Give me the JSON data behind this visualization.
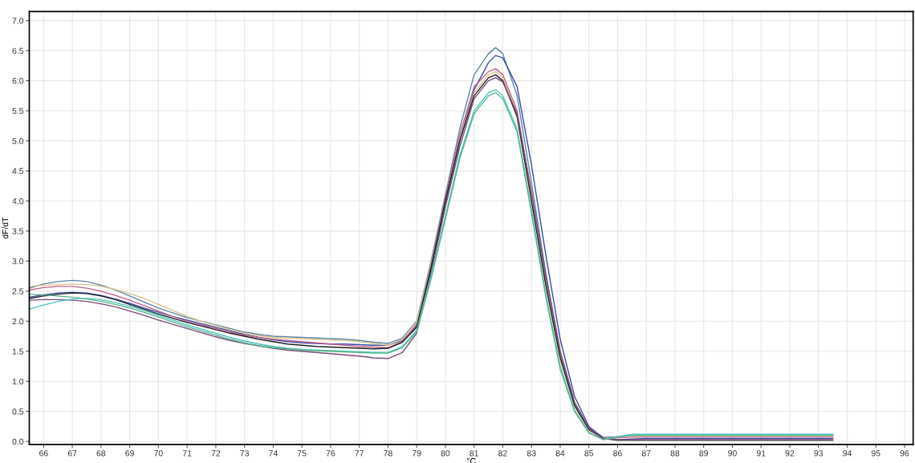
{
  "chart_data": {
    "type": "line",
    "xlabel": "°C",
    "ylabel": "dF/dT",
    "x": [
      65.5,
      66,
      66.5,
      67,
      67.5,
      68,
      68.5,
      69,
      69.5,
      70,
      70.5,
      71,
      71.5,
      72,
      72.5,
      73,
      73.5,
      74,
      74.5,
      75,
      75.5,
      76,
      76.5,
      77,
      77.5,
      78,
      78.5,
      79,
      79.5,
      80,
      80.5,
      81,
      81.5,
      81.75,
      82,
      82.5,
      83,
      83.5,
      84,
      84.5,
      85,
      85.5,
      86,
      86.5,
      87,
      88,
      89,
      90,
      91,
      92,
      93,
      93.5
    ],
    "series": [
      {
        "color": "#5a86a8",
        "values": [
          2.55,
          2.62,
          2.66,
          2.68,
          2.66,
          2.6,
          2.52,
          2.42,
          2.32,
          2.22,
          2.14,
          2.06,
          2.0,
          1.94,
          1.88,
          1.82,
          1.78,
          1.75,
          1.74,
          1.73,
          1.72,
          1.71,
          1.7,
          1.68,
          1.65,
          1.63,
          1.72,
          2.0,
          3.0,
          4.1,
          5.2,
          6.1,
          6.45,
          6.55,
          6.45,
          5.75,
          4.3,
          2.8,
          1.5,
          0.65,
          0.22,
          0.07,
          0.08,
          0.1,
          0.11,
          0.11,
          0.11,
          0.11,
          0.11,
          0.11,
          0.11,
          0.11
        ]
      },
      {
        "color": "#3a4aa8",
        "values": [
          2.4,
          2.44,
          2.47,
          2.48,
          2.47,
          2.43,
          2.37,
          2.3,
          2.22,
          2.15,
          2.08,
          2.02,
          1.96,
          1.9,
          1.84,
          1.78,
          1.73,
          1.69,
          1.66,
          1.64,
          1.63,
          1.62,
          1.62,
          1.61,
          1.6,
          1.6,
          1.68,
          1.92,
          2.85,
          3.95,
          5.0,
          5.85,
          6.3,
          6.42,
          6.38,
          5.9,
          4.6,
          3.1,
          1.7,
          0.75,
          0.25,
          0.06,
          0.03,
          0.04,
          0.05,
          0.05,
          0.05,
          0.05,
          0.05,
          0.05,
          0.05,
          0.05
        ]
      },
      {
        "color": "#c0608a",
        "values": [
          2.52,
          2.56,
          2.58,
          2.58,
          2.55,
          2.5,
          2.43,
          2.35,
          2.26,
          2.17,
          2.08,
          2.0,
          1.94,
          1.88,
          1.82,
          1.77,
          1.73,
          1.7,
          1.68,
          1.66,
          1.64,
          1.62,
          1.6,
          1.58,
          1.57,
          1.56,
          1.66,
          1.95,
          2.95,
          4.05,
          5.1,
          5.9,
          6.15,
          6.2,
          6.1,
          5.5,
          4.1,
          2.65,
          1.4,
          0.6,
          0.2,
          0.05,
          0.06,
          0.07,
          0.07,
          0.07,
          0.07,
          0.07,
          0.07,
          0.07,
          0.07,
          0.07
        ]
      },
      {
        "color": "#d8c48a",
        "values": [
          2.58,
          2.6,
          2.61,
          2.62,
          2.61,
          2.58,
          2.53,
          2.46,
          2.38,
          2.28,
          2.18,
          2.08,
          2.0,
          1.93,
          1.86,
          1.8,
          1.76,
          1.73,
          1.72,
          1.71,
          1.7,
          1.69,
          1.68,
          1.66,
          1.63,
          1.6,
          1.7,
          1.98,
          2.95,
          4.0,
          5.0,
          5.8,
          6.1,
          6.15,
          6.05,
          5.45,
          4.05,
          2.6,
          1.35,
          0.58,
          0.18,
          0.05,
          0.07,
          0.09,
          0.09,
          0.09,
          0.09,
          0.09,
          0.09,
          0.09,
          0.09,
          0.09
        ]
      },
      {
        "color": "#202020",
        "values": [
          2.38,
          2.42,
          2.45,
          2.47,
          2.46,
          2.42,
          2.36,
          2.28,
          2.2,
          2.12,
          2.05,
          1.98,
          1.92,
          1.86,
          1.8,
          1.75,
          1.7,
          1.66,
          1.62,
          1.6,
          1.58,
          1.57,
          1.56,
          1.55,
          1.54,
          1.55,
          1.65,
          1.9,
          2.9,
          4.0,
          5.0,
          5.75,
          6.05,
          6.1,
          6.0,
          5.4,
          4.0,
          2.6,
          1.4,
          0.6,
          0.2,
          0.05,
          0.02,
          0.02,
          0.02,
          0.02,
          0.02,
          0.02,
          0.02,
          0.02,
          0.02,
          0.02
        ]
      },
      {
        "color": "#7a4a7a",
        "values": [
          2.35,
          2.36,
          2.36,
          2.35,
          2.33,
          2.29,
          2.24,
          2.17,
          2.1,
          2.02,
          1.95,
          1.88,
          1.81,
          1.74,
          1.68,
          1.63,
          1.59,
          1.55,
          1.52,
          1.5,
          1.48,
          1.46,
          1.44,
          1.42,
          1.39,
          1.38,
          1.48,
          1.8,
          2.8,
          3.9,
          4.9,
          5.7,
          6.0,
          6.05,
          5.98,
          5.45,
          4.15,
          2.75,
          1.5,
          0.65,
          0.22,
          0.05,
          0.03,
          0.03,
          0.03,
          0.03,
          0.03,
          0.03,
          0.03,
          0.03,
          0.03,
          0.03
        ]
      },
      {
        "color": "#48c4c4",
        "values": [
          2.2,
          2.27,
          2.33,
          2.37,
          2.38,
          2.36,
          2.31,
          2.25,
          2.18,
          2.1,
          2.02,
          1.94,
          1.87,
          1.8,
          1.73,
          1.67,
          1.62,
          1.58,
          1.55,
          1.53,
          1.52,
          1.51,
          1.5,
          1.49,
          1.48,
          1.48,
          1.58,
          1.85,
          2.75,
          3.75,
          4.75,
          5.5,
          5.8,
          5.85,
          5.75,
          5.2,
          3.85,
          2.45,
          1.25,
          0.52,
          0.15,
          0.03,
          0.08,
          0.12,
          0.12,
          0.12,
          0.12,
          0.12,
          0.12,
          0.12,
          0.12,
          0.12
        ]
      },
      {
        "color": "#5ab48a",
        "values": [
          2.45,
          2.44,
          2.42,
          2.4,
          2.37,
          2.33,
          2.28,
          2.22,
          2.15,
          2.07,
          1.99,
          1.91,
          1.84,
          1.77,
          1.7,
          1.64,
          1.59,
          1.56,
          1.54,
          1.52,
          1.51,
          1.5,
          1.49,
          1.48,
          1.47,
          1.47,
          1.56,
          1.82,
          2.7,
          3.7,
          4.7,
          5.45,
          5.75,
          5.8,
          5.7,
          5.15,
          3.8,
          2.4,
          1.2,
          0.5,
          0.14,
          0.03,
          0.07,
          0.1,
          0.1,
          0.1,
          0.1,
          0.1,
          0.1,
          0.1,
          0.1,
          0.1
        ]
      }
    ],
    "xlim": [
      65.5,
      96.3
    ],
    "xticks": [
      66,
      67,
      68,
      69,
      70,
      71,
      72,
      73,
      74,
      75,
      76,
      77,
      78,
      79,
      80,
      81,
      82,
      83,
      84,
      85,
      86,
      87,
      88,
      89,
      90,
      91,
      92,
      93,
      94,
      95,
      96
    ],
    "ylim": [
      -0.05,
      7.15
    ],
    "yticks": [
      {
        "value": 0,
        "label": "0.0"
      },
      {
        "value": 0.5,
        "label": "0.5"
      },
      {
        "value": 1,
        "label": "1.0"
      },
      {
        "value": 1.5,
        "label": "1.5"
      },
      {
        "value": 2,
        "label": "2.0"
      },
      {
        "value": 2.5,
        "label": "2.5"
      },
      {
        "value": 3,
        "label": "3.0"
      },
      {
        "value": 3.5,
        "label": "3.5"
      },
      {
        "value": 4,
        "label": "4.0"
      },
      {
        "value": 4.5,
        "label": "4.5"
      },
      {
        "value": 5,
        "label": "5.0"
      },
      {
        "value": 5.5,
        "label": "5.5"
      },
      {
        "value": 6,
        "label": "6.0"
      },
      {
        "value": 6.5,
        "label": "6.5"
      },
      {
        "value": 7,
        "label": "7.0"
      }
    ],
    "grid": true,
    "marker": "none",
    "line_style": "solid"
  }
}
